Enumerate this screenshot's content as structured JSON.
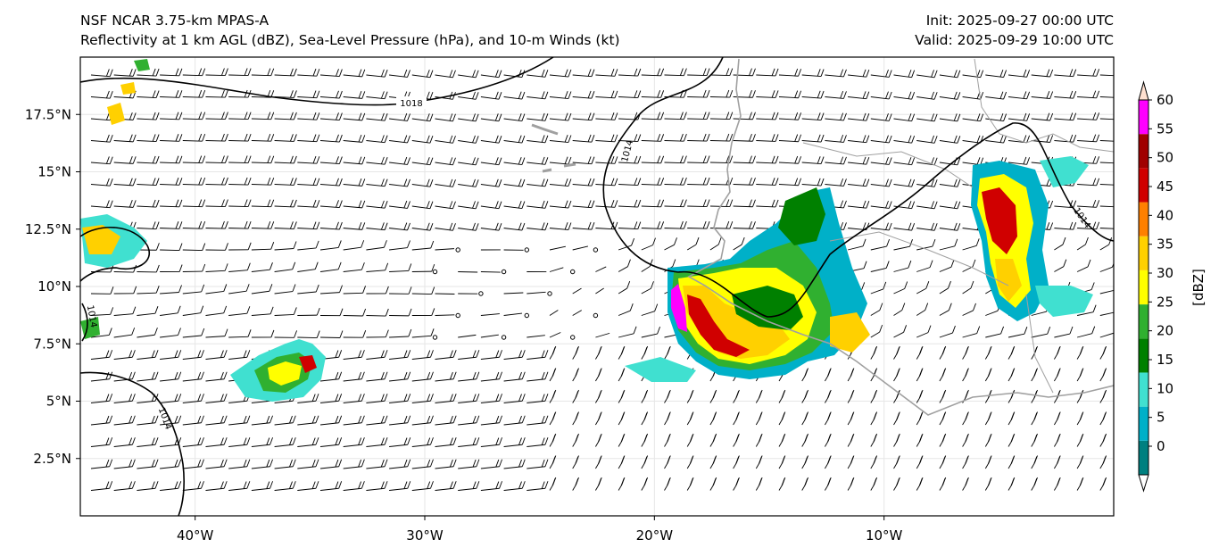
{
  "header": {
    "left_line1": "NSF NCAR 3.75-km MPAS-A",
    "left_line2": "Reflectivity at 1 km AGL (dBZ), Sea-Level Pressure (hPa), and 10-m Winds (kt)",
    "right_line1": "Init: 2025-09-27 00:00 UTC",
    "right_line2": "Valid: 2025-09-29 10:00 UTC"
  },
  "map": {
    "lon_range": [
      -45,
      0
    ],
    "lat_range": [
      0,
      20
    ],
    "x_ticks": [
      {
        "value": -40,
        "label": "40°W"
      },
      {
        "value": -30,
        "label": "30°W"
      },
      {
        "value": -20,
        "label": "20°W"
      },
      {
        "value": -10,
        "label": "10°W"
      }
    ],
    "y_ticks": [
      {
        "value": 2.5,
        "label": "2.5°N"
      },
      {
        "value": 5,
        "label": "5°N"
      },
      {
        "value": 7.5,
        "label": "7.5°N"
      },
      {
        "value": 10,
        "label": "10°N"
      },
      {
        "value": 12.5,
        "label": "12.5°N"
      },
      {
        "value": 15,
        "label": "15°N"
      },
      {
        "value": 17.5,
        "label": "17.5°N"
      }
    ],
    "isobar_labels": [
      "1018",
      "1014",
      "1014",
      "1014",
      "1014"
    ],
    "colors": {
      "coastline": "#a0a0a0",
      "isobar": "#000000",
      "barb": "#000000"
    }
  },
  "colorbar": {
    "label": "[dBZ]",
    "ticks": [
      "0",
      "5",
      "10",
      "15",
      "20",
      "25",
      "30",
      "35",
      "40",
      "45",
      "50",
      "55",
      "60"
    ],
    "colors": [
      "#ffffff",
      "#008080",
      "#00b0c8",
      "#40e0d0",
      "#008000",
      "#30b030",
      "#ffff00",
      "#ffd000",
      "#ff8000",
      "#d00000",
      "#a00000",
      "#ff00ff",
      "#ffe0d0"
    ]
  }
}
